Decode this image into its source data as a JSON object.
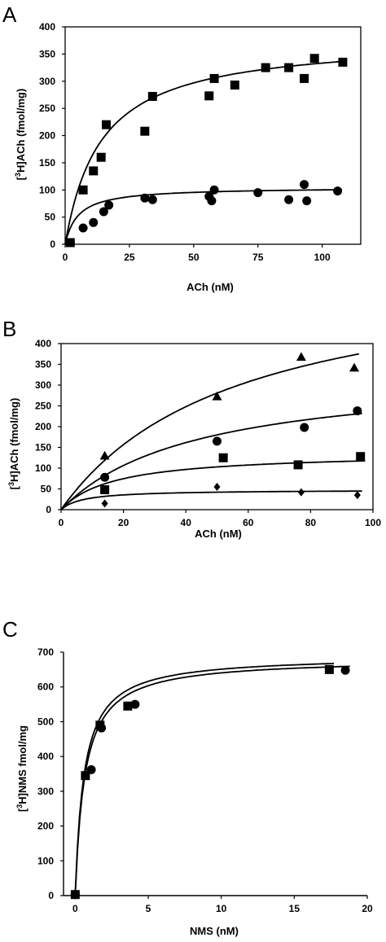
{
  "chart_data": [
    {
      "panel": "A",
      "type": "scatter",
      "xlabel": "ACh (nM)",
      "ylabel": "[3H]ACh (fmol/mg)",
      "xlim": [
        0,
        115
      ],
      "ylim": [
        0,
        400
      ],
      "xticks": [
        0,
        25,
        50,
        75,
        100
      ],
      "yticks": [
        0,
        50,
        100,
        150,
        200,
        250,
        300,
        350,
        400
      ],
      "frame": true,
      "series": [
        {
          "marker": "square",
          "points": [
            [
              2,
              3
            ],
            [
              7,
              100
            ],
            [
              11,
              135
            ],
            [
              14,
              160
            ],
            [
              16,
              220
            ],
            [
              31,
              208
            ],
            [
              34,
              272
            ],
            [
              56,
              273
            ],
            [
              58,
              305
            ],
            [
              66,
              293
            ],
            [
              78,
              325
            ],
            [
              87,
              325
            ],
            [
              93,
              305
            ],
            [
              97,
              342
            ],
            [
              108,
              335
            ]
          ],
          "fit": {
            "bmax": 380,
            "kd": 14
          }
        },
        {
          "marker": "circle",
          "points": [
            [
              2,
              3
            ],
            [
              7,
              30
            ],
            [
              11,
              40
            ],
            [
              15,
              60
            ],
            [
              17,
              72
            ],
            [
              31,
              85
            ],
            [
              34,
              82
            ],
            [
              56,
              88
            ],
            [
              57,
              80
            ],
            [
              58,
              100
            ],
            [
              75,
              95
            ],
            [
              87,
              82
            ],
            [
              93,
              110
            ],
            [
              94,
              80
            ],
            [
              106,
              98
            ]
          ],
          "fit": {
            "bmax": 105,
            "kd": 5
          }
        }
      ]
    },
    {
      "panel": "B",
      "type": "scatter",
      "xlabel": "ACh (nM)",
      "ylabel": "[3H]ACh (fmol/mg)",
      "xlim": [
        0,
        100
      ],
      "ylim": [
        0,
        400
      ],
      "xticks": [
        0,
        20,
        40,
        60,
        80,
        100
      ],
      "yticks": [
        0,
        50,
        100,
        150,
        200,
        250,
        300,
        350,
        400
      ],
      "frame": true,
      "series": [
        {
          "marker": "triangle",
          "points": [
            [
              14,
              130
            ],
            [
              50,
              273
            ],
            [
              77,
              368
            ],
            [
              94,
              342
            ]
          ],
          "fit": {
            "bmax": 595,
            "kd": 56
          }
        },
        {
          "marker": "circle",
          "points": [
            [
              14,
              78
            ],
            [
              50,
              165
            ],
            [
              78,
              198
            ],
            [
              95,
              238
            ]
          ],
          "fit": {
            "bmax": 335,
            "kd": 43
          }
        },
        {
          "marker": "square",
          "points": [
            [
              14,
              48
            ],
            [
              52,
              125
            ],
            [
              76,
              108
            ],
            [
              96,
              128
            ]
          ],
          "fit": {
            "bmax": 138,
            "kd": 17
          }
        },
        {
          "marker": "diamond",
          "points": [
            [
              14,
              15
            ],
            [
              50,
              55
            ],
            [
              77,
              42
            ],
            [
              95,
              35
            ]
          ],
          "fit": {
            "bmax": 48,
            "kd": 7
          }
        }
      ]
    },
    {
      "panel": "C",
      "type": "scatter",
      "xlabel": "NMS (nM)",
      "ylabel": "[3H]NMS fmol/mg",
      "xlim": [
        -0.8,
        20
      ],
      "ylim": [
        0,
        700
      ],
      "xticks": [
        0,
        5,
        10,
        15,
        20
      ],
      "yticks": [
        0,
        100,
        200,
        300,
        400,
        500,
        600,
        700
      ],
      "frame": false,
      "series": [
        {
          "marker": "square",
          "points": [
            [
              0,
              3
            ],
            [
              0.7,
              345
            ],
            [
              1.7,
              490
            ],
            [
              3.6,
              545
            ],
            [
              17.4,
              650
            ]
          ],
          "fit": {
            "bmax": 690,
            "kd": 0.6
          }
        },
        {
          "marker": "circle",
          "points": [
            [
              0,
              3
            ],
            [
              1.1,
              362
            ],
            [
              1.8,
              482
            ],
            [
              4.1,
              550
            ],
            [
              18.5,
              648
            ]
          ],
          "fit": {
            "bmax": 682,
            "kd": 0.65
          }
        }
      ]
    }
  ]
}
